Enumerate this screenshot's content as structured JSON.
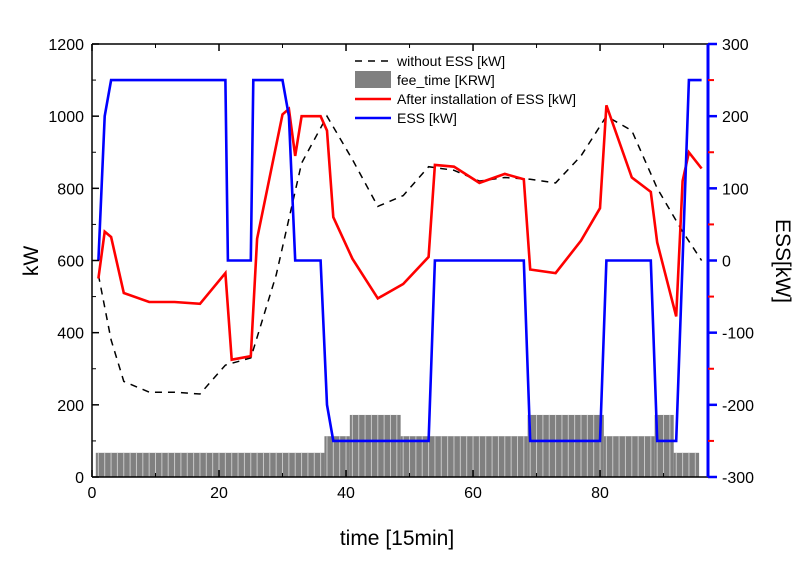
{
  "chart_data": {
    "type": "line",
    "xlabel": "time [15min]",
    "ylabel_left": "kW",
    "ylabel_right": "ESS[kW]",
    "xlim": [
      0,
      97
    ],
    "ylim_left": [
      0,
      1200
    ],
    "ylim_right": [
      -300,
      300
    ],
    "x_ticks": [
      0,
      20,
      40,
      60,
      80
    ],
    "y_ticks_left": [
      0,
      200,
      400,
      600,
      800,
      1000,
      1200
    ],
    "y_ticks_right": [
      -300,
      -200,
      -100,
      0,
      100,
      200,
      300
    ],
    "grid": false,
    "legend_position": "top-center",
    "colors": {
      "left_axis": "#000000",
      "right_axis": "#0000ff",
      "without_ess": "#000000",
      "fee": "#808080",
      "after_ess": "#ff0000",
      "ess": "#0000ff"
    },
    "legend": [
      {
        "label": "without ESS [kW]",
        "key": "without_ess"
      },
      {
        "label": "fee_time [KRW]",
        "key": "fee"
      },
      {
        "label": "After installation of ESS [kW]",
        "key": "after_ess"
      },
      {
        "label": "ESS [kW]",
        "key": "ess"
      }
    ],
    "series": [
      {
        "name": "without ESS [kW]",
        "key": "without_ess",
        "axis": "left",
        "style": "dashed",
        "x": [
          1,
          3,
          5,
          9,
          13,
          17,
          21,
          25,
          29,
          33,
          37,
          41,
          45,
          49,
          53,
          57,
          61,
          65,
          69,
          73,
          77,
          81,
          85,
          89,
          93,
          96
        ],
        "y": [
          560,
          380,
          265,
          235,
          235,
          230,
          310,
          330,
          560,
          870,
          1000,
          880,
          750,
          780,
          860,
          850,
          820,
          830,
          825,
          815,
          890,
          1000,
          960,
          800,
          680,
          600
        ]
      },
      {
        "name": "fee_time [KRW]",
        "key": "fee",
        "axis": "left",
        "type": "bar",
        "segments": [
          {
            "x0": 0.6,
            "x1": 36.6,
            "value": 67
          },
          {
            "x0": 36.6,
            "x1": 40.6,
            "value": 113
          },
          {
            "x0": 40.6,
            "x1": 48.6,
            "value": 172
          },
          {
            "x0": 48.6,
            "x1": 68.6,
            "value": 113
          },
          {
            "x0": 68.6,
            "x1": 80.6,
            "value": 172
          },
          {
            "x0": 80.6,
            "x1": 88.6,
            "value": 113
          },
          {
            "x0": 88.6,
            "x1": 91.6,
            "value": 172
          },
          {
            "x0": 91.6,
            "x1": 95.6,
            "value": 67
          }
        ]
      },
      {
        "name": "After installation of ESS [kW]",
        "key": "after_ess",
        "axis": "left",
        "style": "solid",
        "x": [
          1,
          2,
          3,
          5,
          9,
          13,
          17,
          21,
          22,
          25,
          26,
          30,
          31,
          32,
          33,
          36,
          37,
          38,
          41,
          45,
          49,
          53,
          54,
          57,
          61,
          65,
          68,
          69,
          73,
          77,
          80,
          81,
          85,
          88,
          89,
          92,
          93,
          94,
          96
        ],
        "y": [
          550,
          680,
          665,
          510,
          485,
          485,
          480,
          565,
          325,
          335,
          660,
          1005,
          1020,
          890,
          1000,
          1000,
          960,
          720,
          605,
          495,
          535,
          610,
          865,
          860,
          815,
          840,
          825,
          575,
          565,
          655,
          745,
          1030,
          830,
          790,
          650,
          445,
          820,
          900,
          855
        ]
      },
      {
        "name": "ESS [kW]",
        "key": "ess",
        "axis": "right",
        "style": "solid",
        "x": [
          1,
          2,
          3,
          21,
          21.4,
          25,
          25.4,
          30,
          31,
          32,
          36,
          37,
          38,
          53,
          54,
          68,
          69,
          80,
          81,
          88,
          89,
          92,
          93,
          94,
          96
        ],
        "y": [
          0,
          200,
          250,
          250,
          0,
          0,
          250,
          250,
          200,
          0,
          0,
          -200,
          -250,
          -250,
          0,
          0,
          -250,
          -250,
          0,
          0,
          -250,
          -250,
          0,
          250,
          250
        ]
      }
    ]
  }
}
